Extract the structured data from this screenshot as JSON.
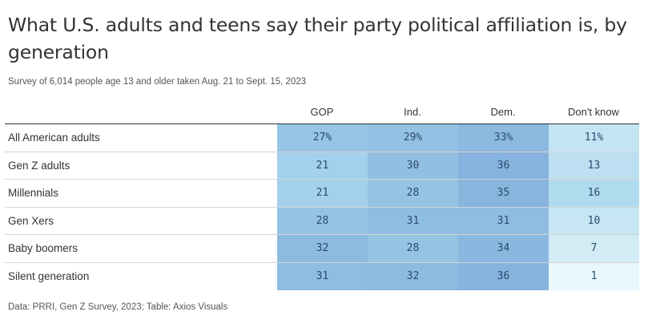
{
  "title": "What U.S. adults and teens say their party political affiliation is, by generation",
  "subtitle": "Survey of 6,014 people age 13 and older taken Aug. 21 to Sept. 15, 2023",
  "source": "Data: PRRI, Gen Z Survey, 2023; Table: Axios Visuals",
  "chart_data": {
    "type": "table",
    "title": "What U.S. adults and teens say their party political affiliation is, by generation",
    "columns": [
      "GOP",
      "Ind.",
      "Dem.",
      "Don't know"
    ],
    "rows": [
      {
        "label": "All American adults",
        "values": [
          27,
          29,
          33,
          11
        ],
        "display": [
          "27%",
          "29%",
          "33%",
          "11%"
        ]
      },
      {
        "label": "Gen Z adults",
        "values": [
          21,
          30,
          36,
          13
        ],
        "display": [
          "21",
          "30",
          "36",
          "13"
        ]
      },
      {
        "label": "Millennials",
        "values": [
          21,
          28,
          35,
          16
        ],
        "display": [
          "21",
          "28",
          "35",
          "16"
        ]
      },
      {
        "label": "Gen Xers",
        "values": [
          28,
          31,
          31,
          10
        ],
        "display": [
          "28",
          "31",
          "31",
          "10"
        ]
      },
      {
        "label": "Baby boomers",
        "values": [
          32,
          28,
          34,
          7
        ],
        "display": [
          "32",
          "28",
          "34",
          "7"
        ]
      },
      {
        "label": "Silent generation",
        "values": [
          31,
          32,
          36,
          1
        ],
        "display": [
          "31",
          "32",
          "36",
          "1"
        ]
      }
    ],
    "color_scale": {
      "low": "#e8f8fc",
      "mid": "#a9d6ec",
      "high": "#85b3dd"
    }
  }
}
